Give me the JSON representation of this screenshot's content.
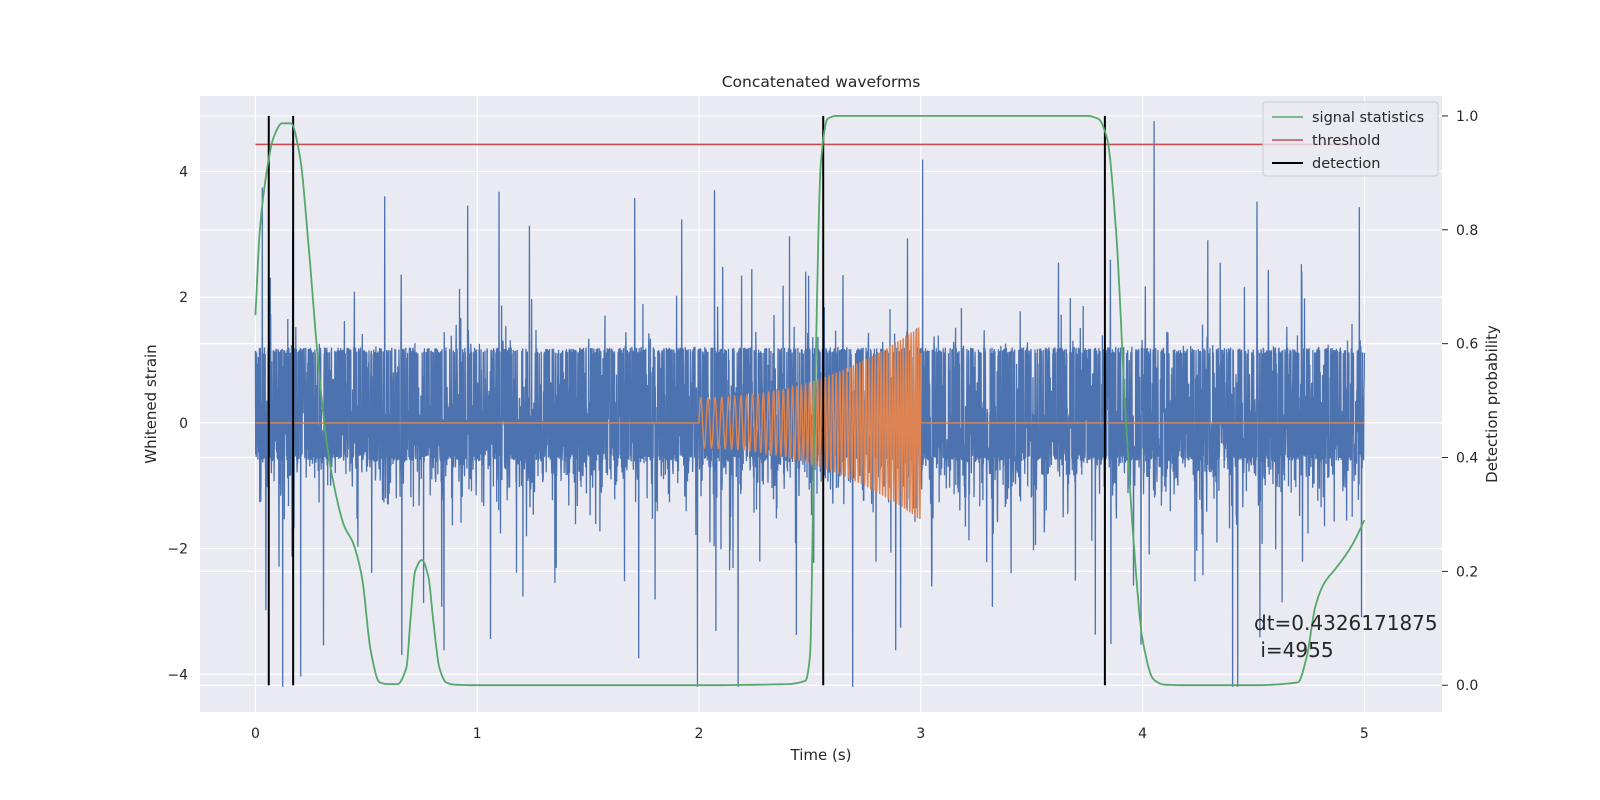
{
  "chart_data": {
    "type": "line",
    "title": "Concatenated waveforms",
    "xlabel": "Time (s)",
    "ylabel": "Whitened strain",
    "y2label": "Detection probability",
    "xlim": [
      -0.25,
      5.35
    ],
    "ylim": [
      -4.6,
      5.2
    ],
    "y2lim": [
      -0.047,
      1.035
    ],
    "xticks": [
      0,
      1,
      2,
      3,
      4,
      5
    ],
    "xtick_labels": [
      "0",
      "1",
      "2",
      "3",
      "4",
      "5"
    ],
    "yticks": [
      -4,
      -2,
      0,
      2,
      4
    ],
    "ytick_labels": [
      "−4",
      "−2",
      "0",
      "2",
      "4"
    ],
    "y2ticks": [
      0.0,
      0.2,
      0.4,
      0.6,
      0.8,
      1.0
    ],
    "y2tick_labels": [
      "0.0",
      "0.2",
      "0.4",
      "0.6",
      "0.8",
      "1.0"
    ],
    "grid": true,
    "legend_position": "top-right",
    "colors": {
      "background": "#eaeaf2",
      "grid": "#ffffff",
      "strain": "#4c72b0",
      "injected": "#dd8452",
      "signal_statistics": "#55a868",
      "threshold": "#c44e52",
      "detection": "#000000"
    },
    "strain": {
      "x_range": [
        0,
        5
      ],
      "noise_envelope": [
        -0.6,
        1.2
      ],
      "spike_range": [
        -4.2,
        4.8
      ]
    },
    "injected_chirp": {
      "start": 2.0,
      "end": 3.0,
      "initial_amplitude": 0.4,
      "final_amplitude": 1.55,
      "initial_cycles_per_s": 30,
      "final_cycles_per_s": 90
    },
    "series": [
      {
        "name": "signal statistics",
        "axis": "right",
        "x": [
          0,
          0.02,
          0.05,
          0.08,
          0.12,
          0.16,
          0.2,
          0.24,
          0.28,
          0.32,
          0.36,
          0.4,
          0.44,
          0.48,
          0.52,
          0.56,
          0.6,
          0.64,
          0.68,
          0.7,
          0.72,
          0.75,
          0.78,
          0.8,
          0.83,
          0.86,
          0.9,
          1.0,
          1.5,
          2.0,
          2.4,
          2.48,
          2.5,
          2.52,
          2.55,
          2.58,
          2.62,
          2.7,
          3.0,
          3.5,
          3.75,
          3.8,
          3.84,
          3.88,
          3.92,
          3.96,
          4.0,
          4.05,
          4.1,
          4.2,
          4.5,
          4.7,
          4.74,
          4.78,
          4.82,
          4.86,
          4.9,
          4.95,
          5.0
        ],
        "y": [
          0.65,
          0.8,
          0.9,
          0.96,
          0.987,
          0.987,
          0.93,
          0.77,
          0.58,
          0.43,
          0.34,
          0.28,
          0.25,
          0.19,
          0.06,
          0.005,
          0.002,
          0.002,
          0.03,
          0.12,
          0.2,
          0.22,
          0.19,
          0.12,
          0.03,
          0.005,
          0.001,
          0.0,
          0.0,
          0.0,
          0.002,
          0.008,
          0.05,
          0.45,
          0.92,
          0.995,
          1.0,
          1.0,
          1.0,
          1.0,
          1.0,
          0.995,
          0.96,
          0.8,
          0.5,
          0.25,
          0.08,
          0.01,
          0.001,
          0.0,
          0.0,
          0.005,
          0.05,
          0.14,
          0.18,
          0.2,
          0.22,
          0.25,
          0.29
        ]
      },
      {
        "name": "threshold",
        "axis": "right",
        "x": [
          0,
          5
        ],
        "y": [
          0.95,
          0.95
        ]
      }
    ],
    "detection_times": [
      0.06,
      0.17,
      2.56,
      3.83
    ],
    "detection_label": "detection",
    "annotation": {
      "line1": "dt=0.4326171875",
      "line2": " i=4955",
      "x": 4.5,
      "y": -3.15
    }
  }
}
